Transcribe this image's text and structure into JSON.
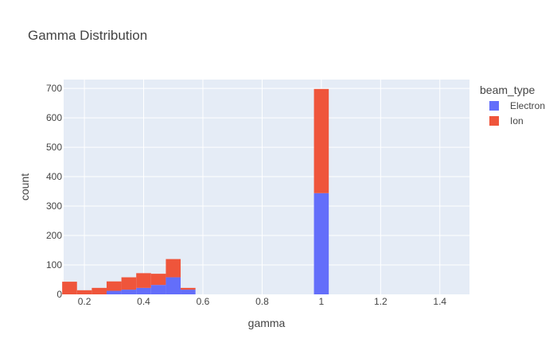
{
  "chart_data": {
    "type": "bar",
    "barmode": "stack",
    "title": "Gamma Distribution",
    "xlabel": "gamma",
    "ylabel": "count",
    "xlim": [
      0.13,
      1.5
    ],
    "ylim": [
      0,
      730
    ],
    "bin_width": 0.05,
    "grid": true,
    "xticks": [
      0.2,
      0.4,
      0.6,
      0.8,
      1,
      1.2,
      1.4
    ],
    "xtick_labels": [
      "0.2",
      "0.4",
      "0.6",
      "0.8",
      "1",
      "1.2",
      "1.4"
    ],
    "yticks": [
      0,
      100,
      200,
      300,
      400,
      500,
      600,
      700
    ],
    "ytick_labels": [
      "0",
      "100",
      "200",
      "300",
      "400",
      "500",
      "600",
      "700"
    ],
    "legend": {
      "title": "beam_type",
      "placement": "top-right"
    },
    "bins": [
      0.15,
      0.2,
      0.25,
      0.3,
      0.35,
      0.4,
      0.45,
      0.5,
      0.55,
      1.0
    ],
    "series": [
      {
        "name": "Electron",
        "color": "#636efa",
        "values": [
          0,
          0,
          0,
          12,
          16,
          22,
          32,
          58,
          16,
          344
        ]
      },
      {
        "name": "Ion",
        "color": "#ef553b",
        "values": [
          43,
          14,
          22,
          32,
          42,
          50,
          38,
          62,
          6,
          354
        ]
      }
    ],
    "background": "#e5ecf6",
    "gridcolor": "#ffffff"
  }
}
